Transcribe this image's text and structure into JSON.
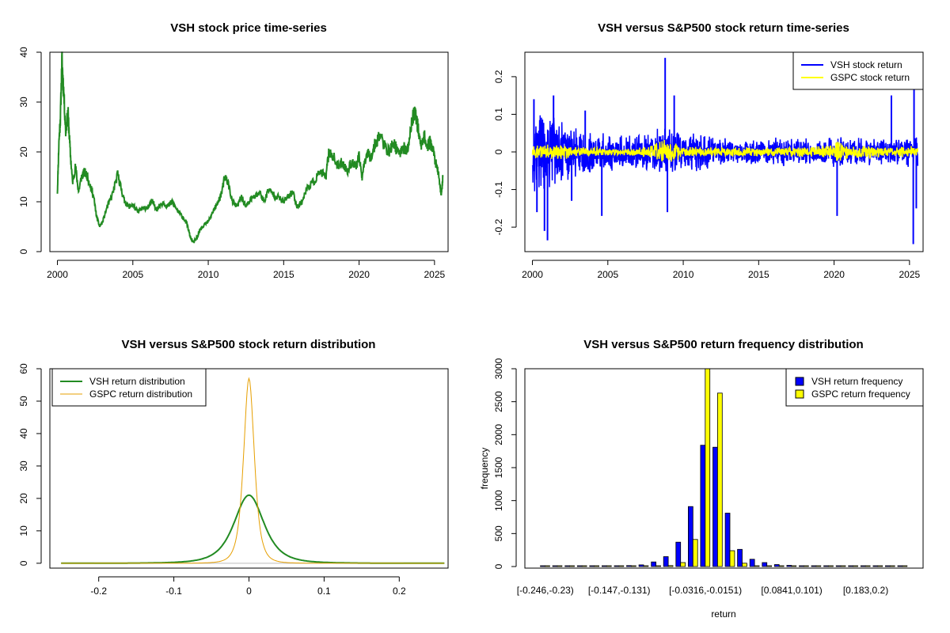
{
  "chart_data": [
    {
      "id": "p1",
      "type": "line",
      "title": "VSH stock price time-series",
      "xlabel": "",
      "ylabel": "",
      "xlim": [
        1999.5,
        2025.9
      ],
      "ylim": [
        0,
        40
      ],
      "xticks": [
        2000,
        2005,
        2010,
        2015,
        2020,
        2025
      ],
      "yticks": [
        0,
        10,
        20,
        30,
        40
      ],
      "series": [
        {
          "name": "VSH stock price",
          "color": "#228B22",
          "x": [
            2000.0,
            2000.1,
            2000.2,
            2000.3,
            2000.4,
            2000.55,
            2000.7,
            2000.85,
            2001.0,
            2001.2,
            2001.4,
            2001.6,
            2001.8,
            2002.0,
            2002.2,
            2002.4,
            2002.6,
            2002.8,
            2003.0,
            2003.3,
            2003.6,
            2004.0,
            2004.2,
            2004.4,
            2004.7,
            2005.0,
            2005.3,
            2005.6,
            2006.0,
            2006.3,
            2006.6,
            2007.0,
            2007.3,
            2007.6,
            2008.0,
            2008.3,
            2008.6,
            2008.8,
            2009.0,
            2009.2,
            2009.5,
            2009.8,
            2010.0,
            2010.3,
            2010.6,
            2010.9,
            2011.1,
            2011.3,
            2011.6,
            2011.9,
            2012.2,
            2012.5,
            2012.8,
            2013.1,
            2013.4,
            2013.7,
            2014.0,
            2014.3,
            2014.6,
            2015.0,
            2015.3,
            2015.6,
            2015.9,
            2016.2,
            2016.6,
            2017.0,
            2017.4,
            2017.8,
            2018.0,
            2018.3,
            2018.6,
            2018.9,
            2019.2,
            2019.5,
            2019.8,
            2020.0,
            2020.2,
            2020.5,
            2020.8,
            2021.1,
            2021.4,
            2021.7,
            2022.0,
            2022.3,
            2022.6,
            2022.9,
            2023.2,
            2023.5,
            2023.7,
            2023.9,
            2024.1,
            2024.3,
            2024.5,
            2024.7,
            2024.9,
            2025.1,
            2025.3,
            2025.45,
            2025.55
          ],
          "values": [
            12,
            22,
            27,
            38.5,
            33,
            24,
            28,
            20,
            14,
            17,
            12,
            15,
            16,
            15,
            13,
            11,
            7,
            5,
            6,
            9,
            11,
            15.5,
            13,
            10.5,
            9,
            9.5,
            8,
            8.5,
            9,
            10,
            8.5,
            10,
            9,
            10,
            8,
            7,
            5.5,
            3,
            1.8,
            2.5,
            4.5,
            5.5,
            6,
            8,
            9.5,
            12,
            15,
            14,
            10,
            9,
            11,
            9,
            10.5,
            11,
            12,
            10,
            12.5,
            11.5,
            11,
            10,
            11,
            12,
            9,
            10,
            13,
            14,
            16,
            15,
            20,
            19,
            17,
            18,
            16,
            18,
            17,
            19,
            15,
            20,
            19,
            22,
            23.5,
            21,
            20,
            22,
            19.5,
            21,
            20,
            26,
            28.5,
            25,
            21,
            23.5,
            21,
            22,
            20.5,
            17.5,
            15,
            11,
            15
          ]
        }
      ]
    },
    {
      "id": "p2",
      "type": "line",
      "title": "VSH versus S&P500 stock return time-series",
      "xlabel": "",
      "ylabel": "",
      "xlim": [
        1999.5,
        2025.9
      ],
      "ylim": [
        -0.265,
        0.265
      ],
      "xticks": [
        2000,
        2005,
        2010,
        2015,
        2020,
        2025
      ],
      "yticks": [
        -0.2,
        -0.1,
        0.0,
        0.1,
        0.2
      ],
      "legend_position": "top-right",
      "series": [
        {
          "name": "VSH stock return",
          "color": "#0000FF",
          "envelope_x": [
            2000,
            2001,
            2002,
            2003,
            2004,
            2005,
            2006,
            2007,
            2008,
            2009,
            2010,
            2011,
            2012,
            2013,
            2014,
            2015,
            2016,
            2017,
            2018,
            2019,
            2020,
            2021,
            2022,
            2023,
            2024,
            2025,
            2025.5
          ],
          "envelope_amp": [
            0.12,
            0.11,
            0.09,
            0.07,
            0.06,
            0.05,
            0.05,
            0.045,
            0.06,
            0.075,
            0.05,
            0.055,
            0.045,
            0.04,
            0.035,
            0.035,
            0.04,
            0.04,
            0.04,
            0.035,
            0.05,
            0.04,
            0.04,
            0.04,
            0.035,
            0.05,
            0.045
          ],
          "spikes": [
            [
              2000.1,
              0.14
            ],
            [
              2000.3,
              -0.16
            ],
            [
              2000.8,
              -0.21
            ],
            [
              2001.0,
              -0.235
            ],
            [
              2001.4,
              0.15
            ],
            [
              2002.6,
              -0.13
            ],
            [
              2003.5,
              0.11
            ],
            [
              2004.6,
              -0.17
            ],
            [
              2008.8,
              0.25
            ],
            [
              2008.95,
              -0.16
            ],
            [
              2009.4,
              0.15
            ],
            [
              2020.2,
              -0.17
            ],
            [
              2023.8,
              0.15
            ],
            [
              2025.25,
              -0.245
            ],
            [
              2025.3,
              0.17
            ],
            [
              2025.45,
              -0.15
            ]
          ]
        },
        {
          "name": "GSPC stock return",
          "color": "#FFFF00",
          "envelope_x": [
            2000,
            2002,
            2003,
            2005,
            2007,
            2008,
            2008.8,
            2009,
            2009.5,
            2010,
            2012,
            2015,
            2018,
            2020,
            2020.2,
            2021,
            2022,
            2024,
            2025,
            2025.5
          ],
          "envelope_amp": [
            0.02,
            0.022,
            0.015,
            0.01,
            0.012,
            0.02,
            0.045,
            0.035,
            0.025,
            0.015,
            0.013,
            0.012,
            0.015,
            0.02,
            0.04,
            0.015,
            0.022,
            0.012,
            0.02,
            0.015
          ],
          "spikes": []
        }
      ]
    },
    {
      "id": "p3",
      "type": "line",
      "title": "VSH versus S&P500 stock return distribution",
      "xlabel": "",
      "ylabel": "",
      "xlim": [
        -0.265,
        0.265
      ],
      "ylim": [
        -1.5,
        60
      ],
      "xticks": [
        -0.2,
        -0.1,
        0.0,
        0.1,
        0.2
      ],
      "yticks": [
        0,
        10,
        20,
        30,
        40,
        50,
        60
      ],
      "legend_position": "top-left",
      "series": [
        {
          "name": "VSH return distribution",
          "color": "#228B22",
          "peak": 21,
          "scale": 0.021,
          "range": [
            -0.25,
            0.26
          ]
        },
        {
          "name": "GSPC return distribution",
          "color": "#E69F00",
          "peak": 57,
          "scale": 0.0075,
          "range": [
            -0.25,
            0.26
          ]
        }
      ]
    },
    {
      "id": "p4",
      "type": "bar",
      "title": "VSH versus S&P500 return frequency distribution",
      "xlabel": "return",
      "ylabel": "frequency",
      "ylim": [
        0,
        3000
      ],
      "yticks": [
        0,
        500,
        1000,
        1500,
        2000,
        2500,
        3000
      ],
      "category_labels": [
        "[-0.246,-0.23)",
        "[-0.147,-0.131)",
        "[-0.0316,-0.0151)",
        "[0.0841,0.101)",
        "[0.183,0.2)"
      ],
      "label_bins": [
        0,
        6,
        13,
        20,
        26
      ],
      "legend_position": "top-right",
      "series": [
        {
          "name": "VSH return frequency",
          "color": "#0000FF",
          "values": [
            2,
            3,
            4,
            4,
            6,
            8,
            10,
            14,
            25,
            70,
            150,
            370,
            910,
            1840,
            1810,
            810,
            260,
            110,
            60,
            30,
            18,
            10,
            8,
            6,
            4,
            4,
            3,
            3,
            2,
            2
          ]
        },
        {
          "name": "GSPC return frequency",
          "color": "#FFFF00",
          "values": [
            0,
            0,
            0,
            0,
            0,
            0,
            0,
            0,
            0,
            3,
            15,
            60,
            410,
            3010,
            2630,
            240,
            50,
            10,
            3,
            0,
            0,
            0,
            0,
            0,
            0,
            0,
            0,
            0,
            0,
            0
          ]
        }
      ]
    }
  ]
}
